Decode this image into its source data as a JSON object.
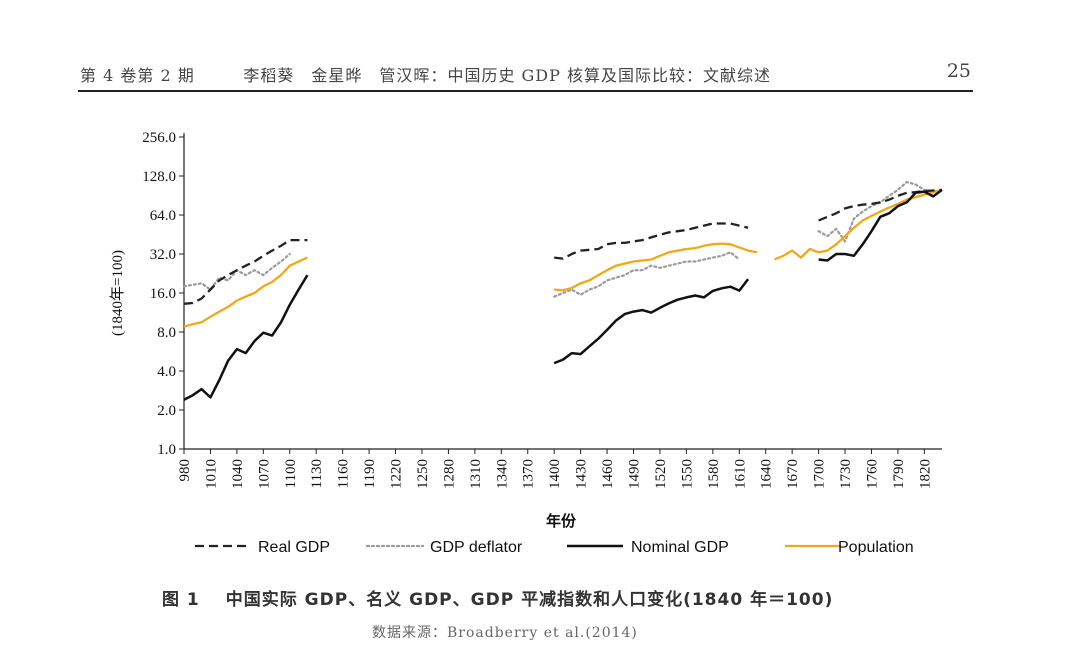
{
  "header": {
    "issue": "第 4 卷第 2 期",
    "authors": "李稻葵　金星晔　管汉晖",
    "title": "中国历史 GDP 核算及国际比较：文献综述",
    "page_number": "25"
  },
  "caption": {
    "figure_label": "图 1",
    "text": "中国实际 GDP、名义 GDP、GDP 平减指数和人口变化(1840 年＝100)"
  },
  "source": "数据来源：Broadberry et al.(2014)",
  "colors": {
    "real_gdp": "#222222",
    "gdp_deflator": "#9a9a9a",
    "nominal_gdp": "#111111",
    "population": "#f0a818"
  },
  "chart_data": {
    "type": "line",
    "xlabel": "年份",
    "ylabel": "(1840年=100)",
    "yscale": "log2",
    "ylim": [
      1.0,
      256.0
    ],
    "xlim": [
      980,
      1840
    ],
    "x_ticks": [
      980,
      1010,
      1040,
      1070,
      1100,
      1130,
      1160,
      1190,
      1220,
      1250,
      1280,
      1310,
      1340,
      1370,
      1400,
      1430,
      1460,
      1490,
      1520,
      1550,
      1580,
      1610,
      1640,
      1670,
      1700,
      1730,
      1760,
      1790,
      1820
    ],
    "y_ticks": [
      "1.0",
      "2.0",
      "4.0",
      "8.0",
      "16.0",
      "32.0",
      "64.0",
      "128.0",
      "256.0"
    ],
    "legend_position": "bottom",
    "series": [
      {
        "name": "Real GDP",
        "style": "dashed",
        "segments": [
          [
            [
              980,
              13.2
            ],
            [
              990,
              13.4
            ],
            [
              1000,
              14.5
            ],
            [
              1010,
              17
            ],
            [
              1020,
              20
            ],
            [
              1030,
              22
            ],
            [
              1040,
              24
            ],
            [
              1050,
              26
            ],
            [
              1060,
              28
            ],
            [
              1070,
              31
            ],
            [
              1080,
              34
            ],
            [
              1090,
              37
            ],
            [
              1100,
              41
            ],
            [
              1110,
              41
            ],
            [
              1120,
              41
            ]
          ],
          [
            [
              1400,
              30
            ],
            [
              1410,
              29.5
            ],
            [
              1420,
              32
            ],
            [
              1430,
              34
            ],
            [
              1440,
              34.5
            ],
            [
              1450,
              35
            ],
            [
              1460,
              38
            ],
            [
              1470,
              39
            ],
            [
              1480,
              39
            ],
            [
              1490,
              40
            ],
            [
              1500,
              41
            ],
            [
              1510,
              43
            ],
            [
              1520,
              45
            ],
            [
              1530,
              47
            ],
            [
              1540,
              48
            ],
            [
              1550,
              49
            ],
            [
              1560,
              51
            ],
            [
              1570,
              53
            ],
            [
              1580,
              55
            ],
            [
              1590,
              55
            ],
            [
              1600,
              55
            ],
            [
              1610,
              53
            ],
            [
              1620,
              51
            ]
          ],
          [
            [
              1700,
              58
            ],
            [
              1710,
              62
            ],
            [
              1720,
              66
            ],
            [
              1730,
              72
            ],
            [
              1740,
              75
            ],
            [
              1750,
              77
            ],
            [
              1760,
              78
            ],
            [
              1770,
              80
            ],
            [
              1780,
              84
            ],
            [
              1790,
              90
            ],
            [
              1800,
              95
            ],
            [
              1810,
              96
            ],
            [
              1820,
              98
            ],
            [
              1830,
              99
            ],
            [
              1840,
              100
            ]
          ]
        ]
      },
      {
        "name": "GDP deflator",
        "style": "dotted",
        "segments": [
          [
            [
              980,
              18
            ],
            [
              990,
              18.5
            ],
            [
              1000,
              19
            ],
            [
              1010,
              17
            ],
            [
              1020,
              21
            ],
            [
              1030,
              20
            ],
            [
              1040,
              24
            ],
            [
              1050,
              22
            ],
            [
              1060,
              24
            ],
            [
              1070,
              22
            ],
            [
              1080,
              25
            ],
            [
              1090,
              28
            ],
            [
              1100,
              32
            ]
          ],
          [
            [
              1400,
              15
            ],
            [
              1410,
              16
            ],
            [
              1420,
              17
            ],
            [
              1430,
              15.5
            ],
            [
              1440,
              17
            ],
            [
              1450,
              18
            ],
            [
              1460,
              20
            ],
            [
              1470,
              21
            ],
            [
              1480,
              22
            ],
            [
              1490,
              24
            ],
            [
              1500,
              24
            ],
            [
              1510,
              26
            ],
            [
              1520,
              25
            ],
            [
              1530,
              26
            ],
            [
              1540,
              27
            ],
            [
              1550,
              28
            ],
            [
              1560,
              28
            ],
            [
              1570,
              29
            ],
            [
              1580,
              30
            ],
            [
              1590,
              31
            ],
            [
              1600,
              33
            ],
            [
              1610,
              29
            ]
          ],
          [
            [
              1700,
              48
            ],
            [
              1710,
              44
            ],
            [
              1720,
              50
            ],
            [
              1730,
              40
            ],
            [
              1740,
              60
            ],
            [
              1750,
              68
            ],
            [
              1760,
              75
            ],
            [
              1770,
              80
            ],
            [
              1780,
              90
            ],
            [
              1790,
              100
            ],
            [
              1800,
              115
            ],
            [
              1810,
              110
            ],
            [
              1820,
              100
            ],
            [
              1830,
              97
            ],
            [
              1840,
              100
            ]
          ]
        ]
      },
      {
        "name": "Nominal GDP",
        "style": "solid",
        "segments": [
          [
            [
              980,
              2.4
            ],
            [
              990,
              2.6
            ],
            [
              1000,
              2.9
            ],
            [
              1010,
              2.5
            ],
            [
              1020,
              3.4
            ],
            [
              1030,
              4.8
            ],
            [
              1040,
              5.9
            ],
            [
              1050,
              5.5
            ],
            [
              1060,
              6.8
            ],
            [
              1070,
              7.9
            ],
            [
              1080,
              7.5
            ],
            [
              1090,
              9.5
            ],
            [
              1100,
              13
            ],
            [
              1110,
              17
            ],
            [
              1120,
              22
            ]
          ],
          [
            [
              1400,
              4.6
            ],
            [
              1410,
              4.9
            ],
            [
              1420,
              5.5
            ],
            [
              1430,
              5.4
            ],
            [
              1440,
              6.2
            ],
            [
              1450,
              7.1
            ],
            [
              1460,
              8.3
            ],
            [
              1470,
              9.8
            ],
            [
              1480,
              11
            ],
            [
              1490,
              11.5
            ],
            [
              1500,
              11.8
            ],
            [
              1510,
              11.3
            ],
            [
              1520,
              12.3
            ],
            [
              1530,
              13.3
            ],
            [
              1540,
              14.2
            ],
            [
              1550,
              14.8
            ],
            [
              1560,
              15.3
            ],
            [
              1570,
              14.8
            ],
            [
              1580,
              16.6
            ],
            [
              1590,
              17.4
            ],
            [
              1600,
              17.9
            ],
            [
              1610,
              16.7
            ],
            [
              1620,
              20.5
            ]
          ],
          [
            [
              1700,
              29
            ],
            [
              1710,
              28.5
            ],
            [
              1720,
              32
            ],
            [
              1730,
              32
            ],
            [
              1740,
              31
            ],
            [
              1750,
              38
            ],
            [
              1760,
              48
            ],
            [
              1770,
              62
            ],
            [
              1780,
              66
            ],
            [
              1790,
              75
            ],
            [
              1800,
              80
            ],
            [
              1810,
              95
            ],
            [
              1820,
              97
            ],
            [
              1830,
              89
            ],
            [
              1840,
              100
            ]
          ]
        ]
      },
      {
        "name": "Population",
        "style": "solid",
        "segments": [
          [
            [
              980,
              8.8
            ],
            [
              990,
              9.2
            ],
            [
              1000,
              9.5
            ],
            [
              1010,
              10.5
            ],
            [
              1020,
              11.5
            ],
            [
              1030,
              12.5
            ],
            [
              1040,
              14
            ],
            [
              1050,
              15
            ],
            [
              1060,
              16
            ],
            [
              1070,
              18
            ],
            [
              1080,
              19.5
            ],
            [
              1090,
              22
            ],
            [
              1100,
              26
            ],
            [
              1110,
              28
            ],
            [
              1120,
              30
            ]
          ],
          [
            [
              1400,
              17
            ],
            [
              1410,
              16.8
            ],
            [
              1420,
              17.5
            ],
            [
              1430,
              19
            ],
            [
              1440,
              20
            ],
            [
              1450,
              22
            ],
            [
              1460,
              24
            ],
            [
              1470,
              26
            ],
            [
              1480,
              27
            ],
            [
              1490,
              28
            ],
            [
              1500,
              28.5
            ],
            [
              1510,
              29
            ],
            [
              1520,
              31
            ],
            [
              1530,
              33
            ],
            [
              1540,
              34
            ],
            [
              1550,
              35
            ],
            [
              1560,
              35.5
            ],
            [
              1570,
              37
            ],
            [
              1580,
              38
            ],
            [
              1590,
              38.5
            ],
            [
              1600,
              38
            ],
            [
              1610,
              36
            ],
            [
              1620,
              34
            ],
            [
              1630,
              33
            ]
          ],
          [
            [
              1650,
              29
            ],
            [
              1660,
              31
            ],
            [
              1670,
              34
            ],
            [
              1680,
              30
            ],
            [
              1690,
              35
            ],
            [
              1700,
              33
            ],
            [
              1710,
              34
            ],
            [
              1720,
              38
            ],
            [
              1730,
              44
            ],
            [
              1740,
              51
            ],
            [
              1750,
              58
            ],
            [
              1760,
              63
            ],
            [
              1770,
              68
            ],
            [
              1780,
              73
            ],
            [
              1790,
              78
            ],
            [
              1800,
              84
            ],
            [
              1810,
              88
            ],
            [
              1820,
              92
            ],
            [
              1830,
              96
            ],
            [
              1840,
              100
            ]
          ]
        ]
      }
    ]
  }
}
